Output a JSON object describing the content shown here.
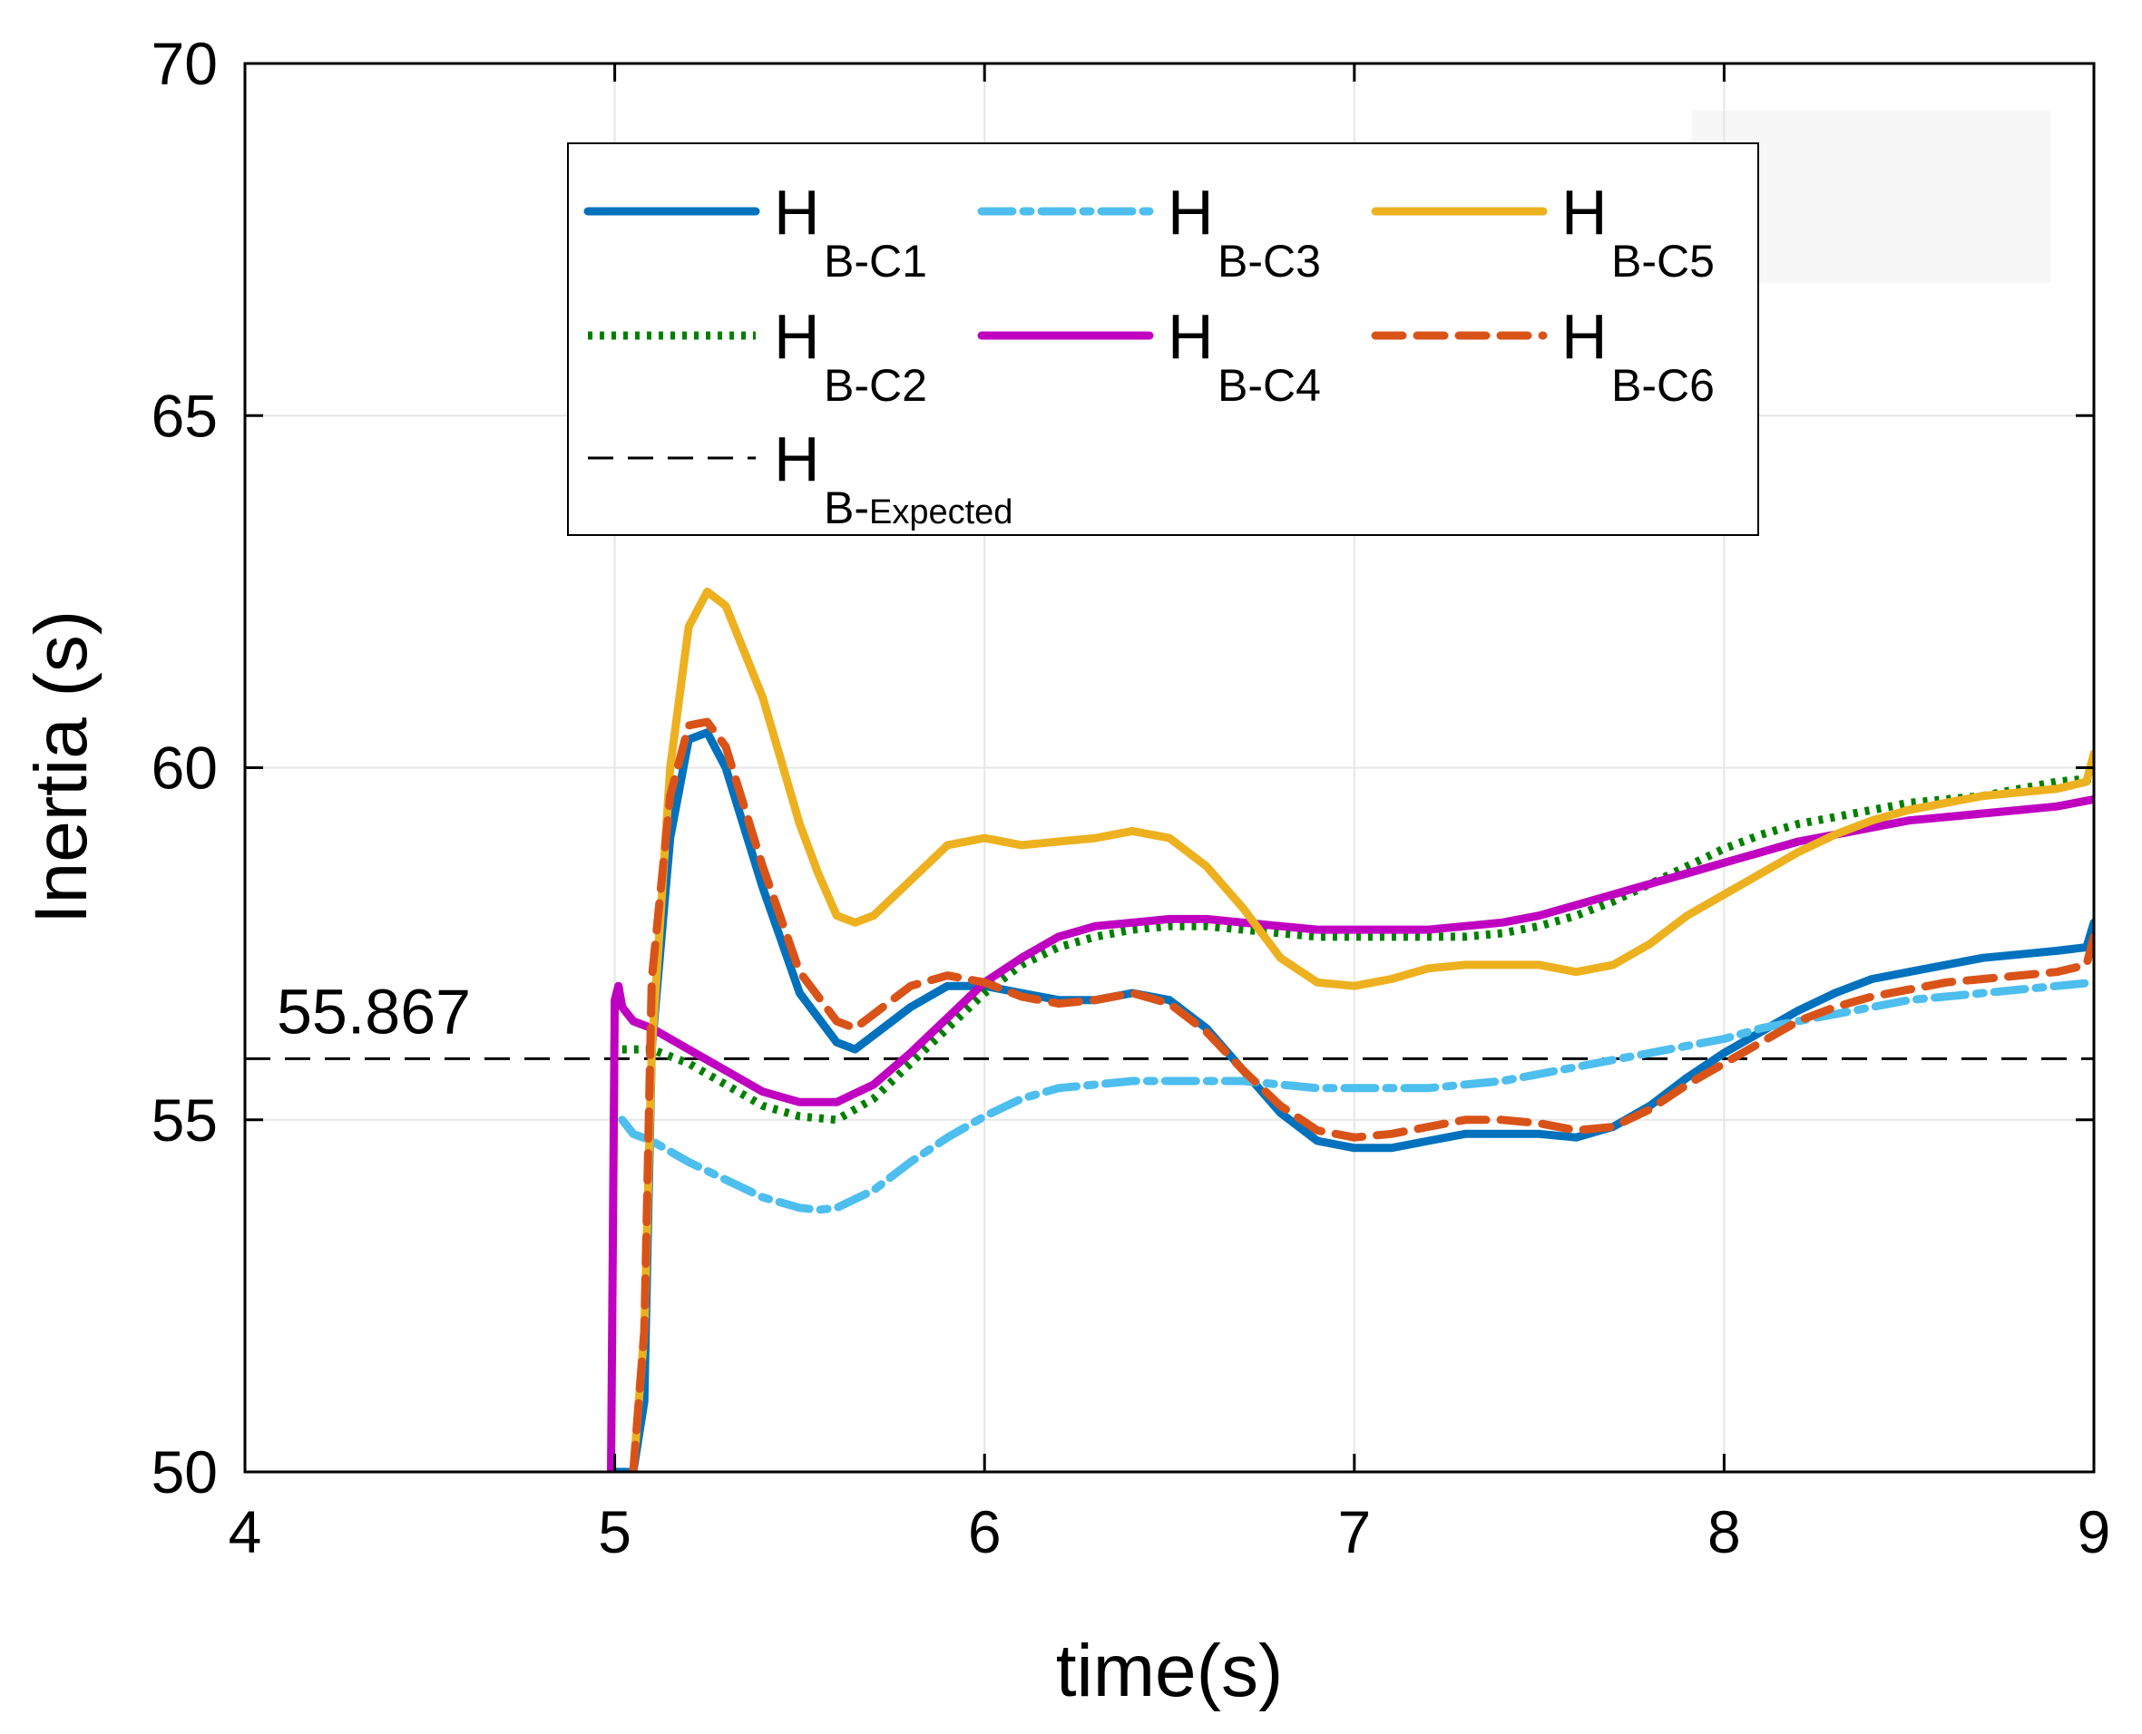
{
  "chart_data": {
    "type": "line",
    "title": "",
    "xlabel": "time(s)",
    "ylabel": "Inertia (s)",
    "xlim": [
      4,
      9
    ],
    "ylim": [
      50,
      70
    ],
    "xticks": [
      4,
      5,
      6,
      7,
      8,
      9
    ],
    "yticks": [
      50,
      55,
      60,
      65,
      70
    ],
    "grid": true,
    "legend_position": "top-center",
    "reference_line": {
      "value": 55.867,
      "label": "55.867"
    },
    "series": [
      {
        "name": "H",
        "sub": "B-C1",
        "color": "#0072BD",
        "dash": "solid",
        "x": [
          5.0,
          5.02,
          5.05,
          5.08,
          5.1,
          5.15,
          5.2,
          5.25,
          5.3,
          5.4,
          5.5,
          5.6,
          5.65,
          5.7,
          5.8,
          5.9,
          6.0,
          6.1,
          6.2,
          6.3,
          6.4,
          6.5,
          6.6,
          6.7,
          6.8,
          6.9,
          7.0,
          7.1,
          7.2,
          7.3,
          7.4,
          7.5,
          7.6,
          7.7,
          7.8,
          7.9,
          8.0,
          8.1,
          8.2,
          8.3,
          8.4,
          8.5,
          8.6,
          8.7,
          8.8,
          8.9,
          8.98,
          9.0
        ],
        "y": [
          50,
          50,
          50,
          51.0,
          56.0,
          59.0,
          60.4,
          60.5,
          60.0,
          58.3,
          56.8,
          56.1,
          56.0,
          56.2,
          56.6,
          56.9,
          56.9,
          56.8,
          56.7,
          56.7,
          56.8,
          56.7,
          56.3,
          55.7,
          55.1,
          54.7,
          54.6,
          54.6,
          54.7,
          54.8,
          54.8,
          54.8,
          54.75,
          54.9,
          55.2,
          55.6,
          55.95,
          56.25,
          56.55,
          56.8,
          57.0,
          57.1,
          57.2,
          57.3,
          57.35,
          57.4,
          57.45,
          57.8
        ]
      },
      {
        "name": "H",
        "sub": "B-C2",
        "color": "#008000",
        "dash": "dot",
        "x": [
          5.02,
          5.1,
          5.2,
          5.3,
          5.4,
          5.5,
          5.6,
          5.7,
          5.8,
          5.9,
          6.0,
          6.1,
          6.2,
          6.3,
          6.4,
          6.5,
          6.6,
          6.7,
          6.8,
          6.9,
          7.0,
          7.1,
          7.2,
          7.3,
          7.4,
          7.5,
          7.6,
          7.7,
          7.8,
          7.9,
          8.0,
          8.1,
          8.2,
          8.3,
          8.4,
          8.5,
          8.6,
          8.7,
          8.8,
          8.9,
          9.0
        ],
        "y": [
          56.0,
          56.0,
          55.8,
          55.5,
          55.2,
          55.05,
          55.0,
          55.3,
          55.8,
          56.3,
          56.8,
          57.2,
          57.45,
          57.6,
          57.7,
          57.75,
          57.75,
          57.7,
          57.65,
          57.6,
          57.6,
          57.6,
          57.6,
          57.6,
          57.65,
          57.75,
          57.9,
          58.1,
          58.35,
          58.6,
          58.85,
          59.05,
          59.2,
          59.3,
          59.4,
          59.5,
          59.55,
          59.6,
          59.7,
          59.8,
          59.85
        ]
      },
      {
        "name": "H",
        "sub": "B-C3",
        "color": "#4DBEEE",
        "dash": "dashdot",
        "x": [
          5.02,
          5.05,
          5.1,
          5.2,
          5.3,
          5.4,
          5.5,
          5.55,
          5.6,
          5.7,
          5.8,
          5.9,
          6.0,
          6.1,
          6.2,
          6.3,
          6.4,
          6.5,
          6.6,
          6.7,
          6.8,
          6.9,
          7.0,
          7.1,
          7.2,
          7.3,
          7.4,
          7.5,
          7.6,
          7.7,
          7.8,
          7.9,
          8.0,
          8.1,
          8.2,
          8.3,
          8.4,
          8.5,
          8.6,
          8.7,
          8.8,
          8.9,
          9.0
        ],
        "y": [
          55.0,
          54.8,
          54.7,
          54.4,
          54.15,
          53.9,
          53.75,
          53.72,
          53.75,
          54.0,
          54.4,
          54.75,
          55.05,
          55.3,
          55.45,
          55.5,
          55.55,
          55.55,
          55.55,
          55.55,
          55.5,
          55.45,
          55.45,
          55.45,
          55.45,
          55.5,
          55.55,
          55.65,
          55.75,
          55.85,
          55.95,
          56.05,
          56.15,
          56.3,
          56.4,
          56.5,
          56.6,
          56.7,
          56.75,
          56.8,
          56.85,
          56.9,
          56.95
        ]
      },
      {
        "name": "H",
        "sub": "B-C4",
        "color": "#C000C0",
        "dash": "solid",
        "x": [
          4.99,
          5.0,
          5.01,
          5.02,
          5.05,
          5.1,
          5.2,
          5.3,
          5.4,
          5.5,
          5.6,
          5.7,
          5.8,
          5.9,
          6.0,
          6.1,
          6.2,
          6.3,
          6.4,
          6.5,
          6.6,
          6.7,
          6.8,
          6.9,
          7.0,
          7.1,
          7.2,
          7.3,
          7.4,
          7.5,
          7.6,
          7.7,
          7.8,
          7.9,
          8.0,
          8.1,
          8.2,
          8.3,
          8.4,
          8.5,
          8.6,
          8.7,
          8.8,
          8.9,
          9.0
        ],
        "y": [
          50,
          56.7,
          56.9,
          56.6,
          56.4,
          56.3,
          56.0,
          55.7,
          55.4,
          55.25,
          55.25,
          55.5,
          55.95,
          56.45,
          56.95,
          57.3,
          57.6,
          57.75,
          57.8,
          57.85,
          57.85,
          57.8,
          57.75,
          57.7,
          57.7,
          57.7,
          57.7,
          57.75,
          57.8,
          57.9,
          58.05,
          58.2,
          58.35,
          58.5,
          58.65,
          58.8,
          58.95,
          59.05,
          59.15,
          59.25,
          59.3,
          59.35,
          59.4,
          59.45,
          59.55
        ]
      },
      {
        "name": "H",
        "sub": "B-C5",
        "color": "#EDB120",
        "dash": "solid",
        "x": [
          5.05,
          5.08,
          5.1,
          5.15,
          5.2,
          5.25,
          5.3,
          5.4,
          5.5,
          5.55,
          5.6,
          5.65,
          5.7,
          5.8,
          5.9,
          6.0,
          6.1,
          6.2,
          6.3,
          6.4,
          6.5,
          6.6,
          6.7,
          6.8,
          6.9,
          7.0,
          7.1,
          7.2,
          7.3,
          7.4,
          7.5,
          7.6,
          7.7,
          7.8,
          7.9,
          8.0,
          8.1,
          8.2,
          8.3,
          8.4,
          8.5,
          8.6,
          8.7,
          8.8,
          8.9,
          8.98,
          9.0
        ],
        "y": [
          50,
          52.0,
          56.0,
          60.0,
          62.0,
          62.5,
          62.3,
          61.0,
          59.2,
          58.5,
          57.9,
          57.8,
          57.9,
          58.4,
          58.9,
          59.0,
          58.9,
          58.95,
          59.0,
          59.1,
          59.0,
          58.6,
          58.0,
          57.3,
          56.95,
          56.9,
          57.0,
          57.15,
          57.2,
          57.2,
          57.2,
          57.1,
          57.2,
          57.5,
          57.9,
          58.2,
          58.5,
          58.8,
          59.05,
          59.25,
          59.4,
          59.5,
          59.6,
          59.65,
          59.7,
          59.8,
          60.2
        ]
      },
      {
        "name": "H",
        "sub": "B-C6",
        "color": "#D95319",
        "dash": "dash",
        "x": [
          5.05,
          5.08,
          5.1,
          5.15,
          5.2,
          5.25,
          5.3,
          5.4,
          5.5,
          5.6,
          5.65,
          5.7,
          5.8,
          5.9,
          6.0,
          6.1,
          6.2,
          6.3,
          6.4,
          6.5,
          6.6,
          6.7,
          6.8,
          6.9,
          7.0,
          7.1,
          7.2,
          7.3,
          7.4,
          7.5,
          7.6,
          7.7,
          7.8,
          7.9,
          8.0,
          8.1,
          8.2,
          8.3,
          8.4,
          8.5,
          8.6,
          8.7,
          8.8,
          8.9,
          8.98,
          9.0
        ],
        "y": [
          50,
          52.0,
          57.0,
          59.6,
          60.6,
          60.65,
          60.3,
          58.6,
          57.1,
          56.4,
          56.3,
          56.5,
          56.9,
          57.05,
          56.95,
          56.75,
          56.65,
          56.7,
          56.8,
          56.65,
          56.25,
          55.7,
          55.2,
          54.85,
          54.75,
          54.8,
          54.9,
          55.0,
          55.0,
          54.95,
          54.85,
          54.9,
          55.15,
          55.5,
          55.8,
          56.1,
          56.4,
          56.6,
          56.75,
          56.85,
          56.95,
          57.0,
          57.05,
          57.1,
          57.2,
          57.6
        ]
      }
    ],
    "legend": {
      "entries": [
        {
          "main": "H",
          "sub": "B-C1"
        },
        {
          "main": "H",
          "sub": "B-C3"
        },
        {
          "main": "H",
          "sub": "B-C5"
        },
        {
          "main": "H",
          "sub": "B-C2"
        },
        {
          "main": "H",
          "sub": "B-C4"
        },
        {
          "main": "H",
          "sub": "B-C6"
        },
        {
          "main": "H",
          "sub_prefix": "B-",
          "sub_small": "Expected"
        }
      ]
    },
    "expected_line_color": "#000000"
  }
}
